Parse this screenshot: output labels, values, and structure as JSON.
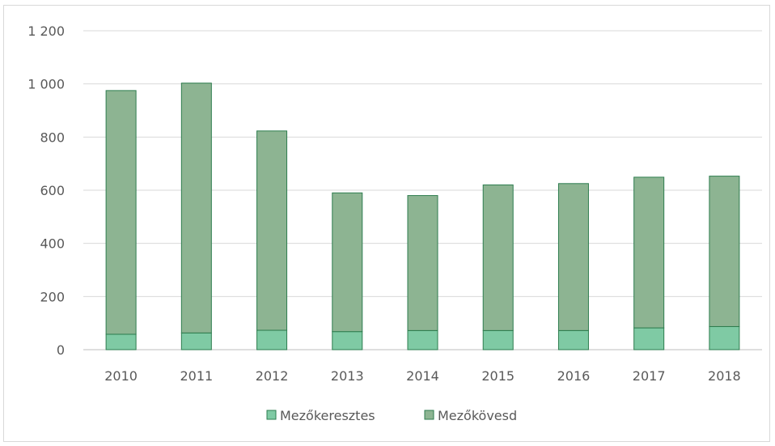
{
  "chart_data": {
    "type": "bar",
    "stacked": true,
    "categories": [
      "2010",
      "2011",
      "2012",
      "2013",
      "2014",
      "2015",
      "2016",
      "2017",
      "2018"
    ],
    "series": [
      {
        "name": "Mezőkeresztes",
        "values": [
          58,
          63,
          73,
          68,
          72,
          72,
          72,
          82,
          87
        ],
        "color": "#7fcaa4"
      },
      {
        "name": "Mezőkövesd",
        "values": [
          917,
          940,
          750,
          522,
          508,
          548,
          553,
          567,
          566
        ],
        "color": "#8db492"
      }
    ],
    "title": "",
    "xlabel": "",
    "ylabel": "",
    "ylim": [
      0,
      1200
    ],
    "yticks": [
      0,
      200,
      400,
      600,
      800,
      1000,
      1200
    ],
    "ytick_labels": [
      "0",
      "200",
      "400",
      "600",
      "800",
      "1 000",
      "1 200"
    ],
    "grid": true,
    "legend": "bottom",
    "bar_edge_color": "#2e7d4f"
  }
}
